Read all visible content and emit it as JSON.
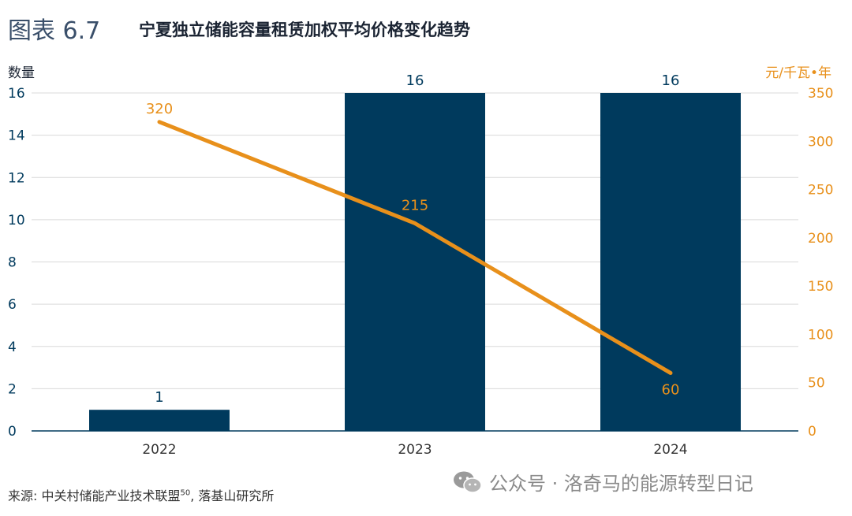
{
  "header": {
    "figure_label": "图表 6.7",
    "title": "宁夏独立储能容量租赁加权平均价格变化趋势"
  },
  "footer": {
    "source_text": "来源: 中关村储能产业技术联盟",
    "source_sup": "50",
    "source_text2": ", 落基山研究所",
    "watermark": "公众号 · 洛奇马的能源转型日记"
  },
  "colors": {
    "bar": "#003a5d",
    "line": "#e8901b",
    "grid": "#d9d9d9",
    "axis_text_left": "#003a5d",
    "axis_text_right": "#e8901b"
  },
  "chart_data": {
    "type": "bar+line",
    "categories": [
      "2022",
      "2023",
      "2024"
    ],
    "series": [
      {
        "name": "数量",
        "type": "bar",
        "axis": "left",
        "values": [
          1,
          16,
          16
        ],
        "labels": [
          "1",
          "16",
          "16"
        ]
      },
      {
        "name": "元/千瓦•年",
        "type": "line",
        "axis": "right",
        "values": [
          320,
          215,
          60
        ],
        "labels": [
          "320",
          "215",
          "60"
        ]
      }
    ],
    "left_axis": {
      "label": "数量",
      "min": 0,
      "max": 16,
      "ticks": [
        0,
        2,
        4,
        6,
        8,
        10,
        12,
        14,
        16
      ]
    },
    "right_axis": {
      "label": "元/千瓦•年",
      "min": 0,
      "max": 350,
      "ticks": [
        0,
        50,
        100,
        150,
        200,
        250,
        300,
        350
      ]
    },
    "grid": true
  }
}
